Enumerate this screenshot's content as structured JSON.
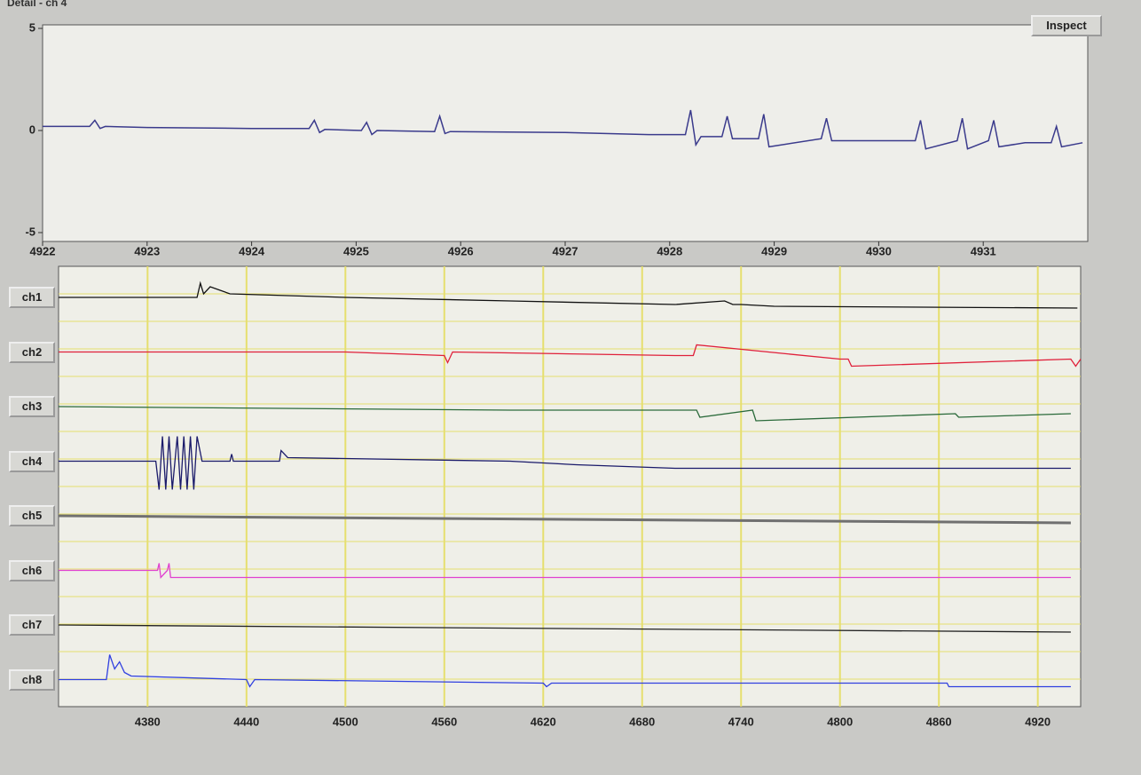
{
  "window": {
    "title": "Detail - ch 4",
    "inspect_button": "Inspect"
  },
  "detail_plot": {
    "type": "line",
    "color": "#3a3a8c",
    "x": [
      4922,
      4922.45,
      4922.5,
      4922.55,
      4922.6,
      4923,
      4924,
      4924.55,
      4924.6,
      4924.65,
      4924.7,
      4925.05,
      4925.1,
      4925.15,
      4925.2,
      4925.75,
      4925.8,
      4925.85,
      4925.9,
      4927,
      4927.8,
      4928.15,
      4928.2,
      4928.25,
      4928.3,
      4928.5,
      4928.55,
      4928.6,
      4928.85,
      4928.9,
      4928.95,
      4929.45,
      4929.5,
      4929.55,
      4930.35,
      4930.4,
      4930.45,
      4930.75,
      4930.8,
      4930.85,
      4931.05,
      4931.1,
      4931.15,
      4931.4,
      4931.65,
      4931.7,
      4931.75,
      4931.95
    ],
    "values": [
      0.2,
      0.2,
      0.5,
      0.1,
      0.2,
      0.15,
      0.1,
      0.1,
      0.5,
      -0.1,
      0.05,
      0.0,
      0.4,
      -0.2,
      0,
      -0.05,
      0.7,
      -0.15,
      -0.05,
      -0.1,
      -0.2,
      -0.2,
      1.0,
      -0.7,
      -0.3,
      -0.3,
      0.7,
      -0.4,
      -0.4,
      0.8,
      -0.8,
      -0.4,
      0.6,
      -0.5,
      -0.5,
      0.5,
      -0.9,
      -0.5,
      0.6,
      -0.9,
      -0.5,
      0.5,
      -0.8,
      -0.6,
      -0.6,
      0.2,
      -0.8,
      -0.6
    ],
    "xlim": [
      4922,
      4932
    ],
    "ylim": [
      -5,
      5
    ],
    "xticks": [
      4922,
      4923,
      4924,
      4925,
      4926,
      4927,
      4928,
      4929,
      4930,
      4931
    ],
    "yticks": [
      -5,
      0,
      5
    ]
  },
  "channel_plot": {
    "type": "line",
    "xlim": [
      4326,
      4946
    ],
    "xticks": [
      4380,
      4440,
      4500,
      4560,
      4620,
      4680,
      4740,
      4800,
      4860,
      4920
    ],
    "grid": true,
    "grid_color": "#e6df6e",
    "series": [
      {
        "name": "ch1",
        "color": "#111111",
        "x": [
          4326,
          4410,
          4412,
          4414,
          4418,
          4430,
          4500,
          4600,
          4700,
          4730,
          4735,
          4740,
          4760,
          4944
        ],
        "values": [
          0,
          0,
          4,
          1,
          3,
          1,
          0,
          -1,
          -2,
          -1,
          -2,
          -2,
          -2.5,
          -3
        ]
      },
      {
        "name": "ch2",
        "color": "#e0203a",
        "x": [
          4326,
          4500,
          4560,
          4562,
          4565,
          4700,
          4711,
          4713,
          4800,
          4805,
          4807,
          4940,
          4943,
          4946
        ],
        "values": [
          0,
          0,
          -1,
          -3,
          0,
          -1,
          -1,
          2,
          -2,
          -2,
          -4,
          -2,
          -4,
          -2
        ]
      },
      {
        "name": "ch3",
        "color": "#2a6a3a",
        "x": [
          4326,
          4600,
          4713,
          4715,
          4747,
          4749,
          4870,
          4872,
          4940
        ],
        "values": [
          0,
          -1,
          -1,
          -3,
          -1,
          -4,
          -2,
          -3,
          -2
        ]
      },
      {
        "name": "ch4",
        "color": "#1a1a6a",
        "x": [
          4326,
          4385,
          4387,
          4389,
          4391,
          4393,
          4395,
          4398,
          4400,
          4402,
          4404,
          4406,
          4408,
          4410,
          4413,
          4430,
          4431,
          4432,
          4460,
          4461,
          4465,
          4600,
          4640,
          4700,
          4940
        ],
        "values": [
          0,
          0,
          -8,
          7,
          -8,
          7,
          -8,
          7,
          -8,
          7,
          -8,
          7,
          -8,
          7,
          0,
          0,
          2,
          0,
          0,
          3,
          1,
          0,
          -1,
          -2,
          -2
        ]
      },
      {
        "name": "ch5",
        "color": "#707070",
        "x": [
          4326,
          4940
        ],
        "values": [
          0,
          -2
        ]
      },
      {
        "name": "ch6",
        "color": "#e040d0",
        "x": [
          4326,
          4386,
          4387,
          4388,
          4392,
          4393,
          4394,
          4940
        ],
        "values": [
          0,
          0,
          2,
          -2,
          0,
          2,
          -2,
          -2
        ]
      },
      {
        "name": "ch7",
        "color": "#222222",
        "x": [
          4326,
          4940
        ],
        "values": [
          0,
          -2
        ]
      },
      {
        "name": "ch8",
        "color": "#3040e0",
        "x": [
          4326,
          4355,
          4357,
          4360,
          4363,
          4366,
          4370,
          4440,
          4442,
          4445,
          4620,
          4622,
          4625,
          4865,
          4866,
          4940
        ],
        "values": [
          0,
          0,
          7,
          3,
          5,
          2,
          1,
          0,
          -2,
          0,
          -1,
          -2,
          -1,
          -1,
          -2,
          -2
        ]
      }
    ]
  }
}
